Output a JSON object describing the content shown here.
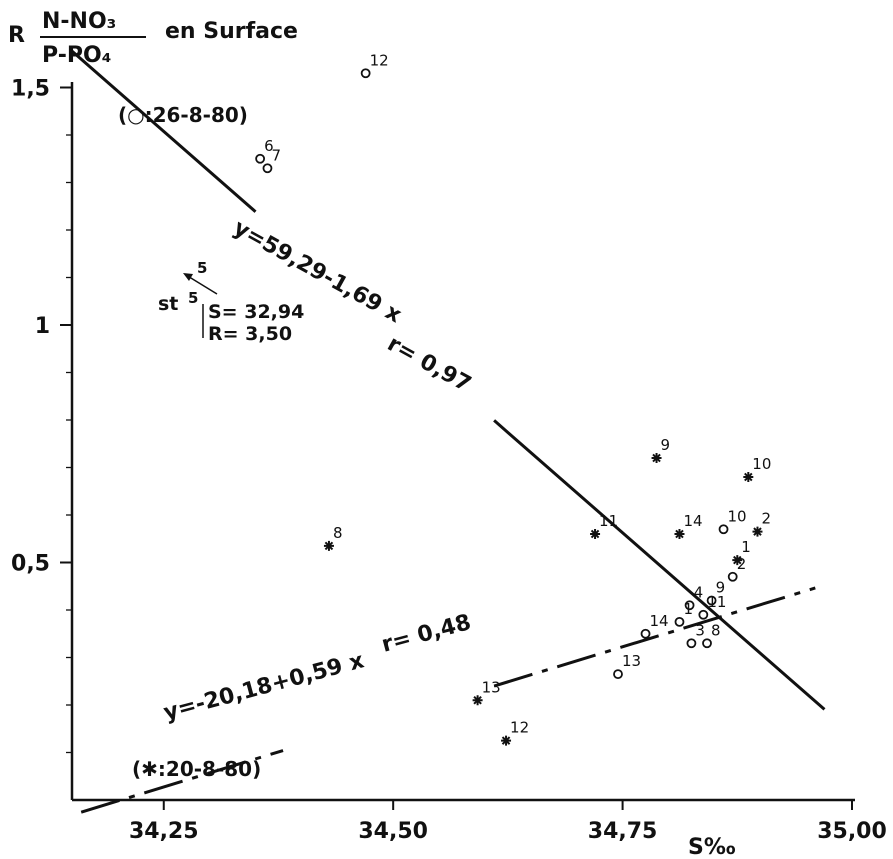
{
  "chart_data": {
    "type": "scatter",
    "title": {
      "prefix": "R",
      "numerator": "N-NO₃",
      "denominator": "P-PO₄",
      "suffix": "en Surface"
    },
    "xlabel": "S‰",
    "xlim": [
      34.15,
      35.0
    ],
    "ylim": [
      0.0,
      1.6
    ],
    "x_ticks": [
      {
        "v": 34.25,
        "label": "34,25"
      },
      {
        "v": 34.5,
        "label": "34,50"
      },
      {
        "v": 34.75,
        "label": "34,75"
      },
      {
        "v": 35.0,
        "label": "35,00"
      }
    ],
    "y_ticks": [
      {
        "v": 0.5,
        "label": "0,5"
      },
      {
        "v": 1.0,
        "label": "1"
      },
      {
        "v": 1.5,
        "label": "1,5"
      }
    ],
    "series": [
      {
        "name": "(○:26-8-80)",
        "marker": "circle",
        "points": [
          {
            "label": "12",
            "x": 34.47,
            "y": 1.53
          },
          {
            "label": "6",
            "x": 34.355,
            "y": 1.35
          },
          {
            "label": "7",
            "x": 34.363,
            "y": 1.33
          },
          {
            "label": "10",
            "x": 34.86,
            "y": 0.57
          },
          {
            "label": "2",
            "x": 34.87,
            "y": 0.47
          },
          {
            "label": "4",
            "x": 34.823,
            "y": 0.41
          },
          {
            "label": "9",
            "x": 34.847,
            "y": 0.42
          },
          {
            "label": "1",
            "x": 34.812,
            "y": 0.375
          },
          {
            "label": "11",
            "x": 34.838,
            "y": 0.39
          },
          {
            "label": "14",
            "x": 34.775,
            "y": 0.35
          },
          {
            "label": "3",
            "x": 34.825,
            "y": 0.33
          },
          {
            "label": "8",
            "x": 34.842,
            "y": 0.33
          },
          {
            "label": "13",
            "x": 34.745,
            "y": 0.265
          }
        ],
        "fit": {
          "equation": "y=59,29-1,69 x",
          "r": "r= 0,97"
        }
      },
      {
        "name": "(✱:20-8-80)",
        "marker": "star",
        "points": [
          {
            "label": "9",
            "x": 34.787,
            "y": 0.72
          },
          {
            "label": "10",
            "x": 34.887,
            "y": 0.68
          },
          {
            "label": "11",
            "x": 34.72,
            "y": 0.56
          },
          {
            "label": "14",
            "x": 34.812,
            "y": 0.56
          },
          {
            "label": "2",
            "x": 34.897,
            "y": 0.565
          },
          {
            "label": "1",
            "x": 34.875,
            "y": 0.505
          },
          {
            "label": "8",
            "x": 34.43,
            "y": 0.535
          },
          {
            "label": "13",
            "x": 34.592,
            "y": 0.21
          },
          {
            "label": "12",
            "x": 34.623,
            "y": 0.125
          }
        ],
        "fit": {
          "equation": "y=-20,18+0,59 x",
          "r": "r= 0,48"
        }
      }
    ],
    "annotations": {
      "station": "st",
      "station_num": "5",
      "s_value": "S= 32,94",
      "r_value": "R= 3,50",
      "arrow_label": "5"
    }
  }
}
